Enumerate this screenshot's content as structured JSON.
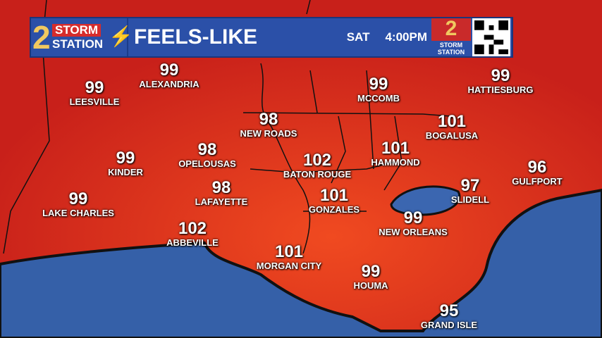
{
  "header": {
    "logo_number": "2",
    "logo_storm": "STORM",
    "logo_station": "STATION",
    "title": "FEELS-LIKE",
    "day": "SAT",
    "time": "4:00PM",
    "logo2_number": "2",
    "logo2_label": "STORM STATION"
  },
  "colors": {
    "land": "#d8281c",
    "water": "#3560a8",
    "banner": "#2b50a8",
    "accent": "#f0c860"
  },
  "cities": [
    {
      "name": "LEESVILLE",
      "value": "99"
    },
    {
      "name": "ALEXANDRIA",
      "value": "99"
    },
    {
      "name": "MCCOMB",
      "value": "99"
    },
    {
      "name": "HATTIESBURG",
      "value": "99"
    },
    {
      "name": "NEW ROADS",
      "value": "98"
    },
    {
      "name": "BOGALUSA",
      "value": "101"
    },
    {
      "name": "KINDER",
      "value": "99"
    },
    {
      "name": "OPELOUSAS",
      "value": "98"
    },
    {
      "name": "BATON ROUGE",
      "value": "102"
    },
    {
      "name": "HAMMOND",
      "value": "101"
    },
    {
      "name": "GULFPORT",
      "value": "96"
    },
    {
      "name": "LAKE CHARLES",
      "value": "99"
    },
    {
      "name": "LAFAYETTE",
      "value": "98"
    },
    {
      "name": "GONZALES",
      "value": "101"
    },
    {
      "name": "SLIDELL",
      "value": "97"
    },
    {
      "name": "NEW ORLEANS",
      "value": "99"
    },
    {
      "name": "ABBEVILLE",
      "value": "102"
    },
    {
      "name": "MORGAN CITY",
      "value": "101"
    },
    {
      "name": "HOUMA",
      "value": "99"
    },
    {
      "name": "GRAND ISLE",
      "value": "95"
    }
  ]
}
